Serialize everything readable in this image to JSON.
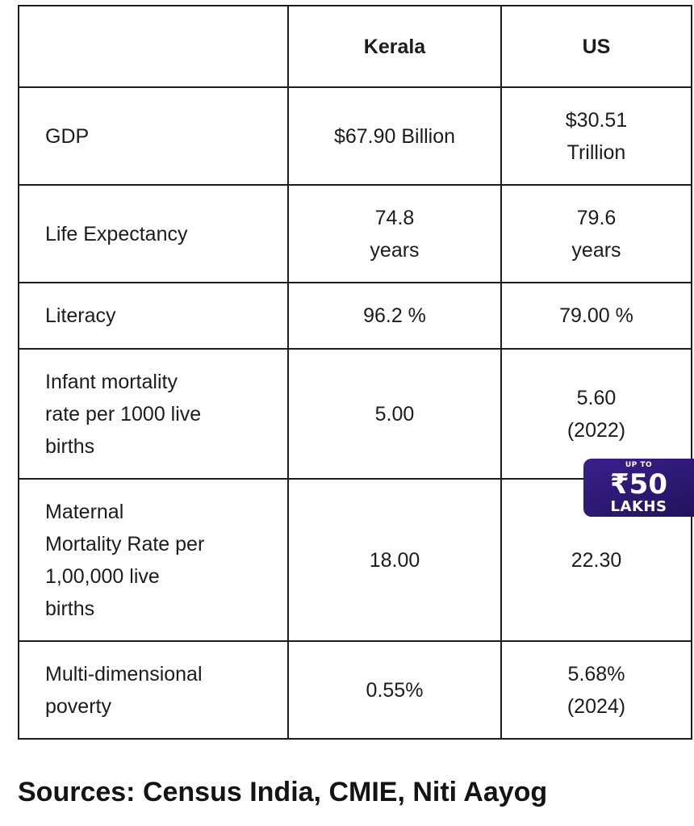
{
  "table": {
    "headers": [
      "",
      "Kerala",
      "US"
    ],
    "rows": [
      {
        "label": "GDP",
        "kerala": "$67.90 Billion",
        "us": "$30.51\nTrillion"
      },
      {
        "label": "Life Expectancy",
        "kerala": "74.8\nyears",
        "us": "79.6\nyears"
      },
      {
        "label": "Literacy",
        "kerala": "96.2 %",
        "us": "79.00 %"
      },
      {
        "label": "Infant mortality\nrate per 1000 live\nbirths",
        "kerala": "5.00",
        "us": "5.60\n(2022)"
      },
      {
        "label": "Maternal\nMortality Rate per\n1,00,000 live\nbirths",
        "kerala": "18.00",
        "us": "22.30"
      },
      {
        "label": "Multi-dimensional\npoverty",
        "kerala": "0.55%",
        "us": "5.68%\n(2024)"
      }
    ]
  },
  "badge": {
    "top": "UP TO",
    "amount": "₹50",
    "unit": "LAKHS",
    "bg_color": "#2b1770"
  },
  "footer": {
    "sources": "Sources: Census India, CMIE, Niti Aayog"
  }
}
